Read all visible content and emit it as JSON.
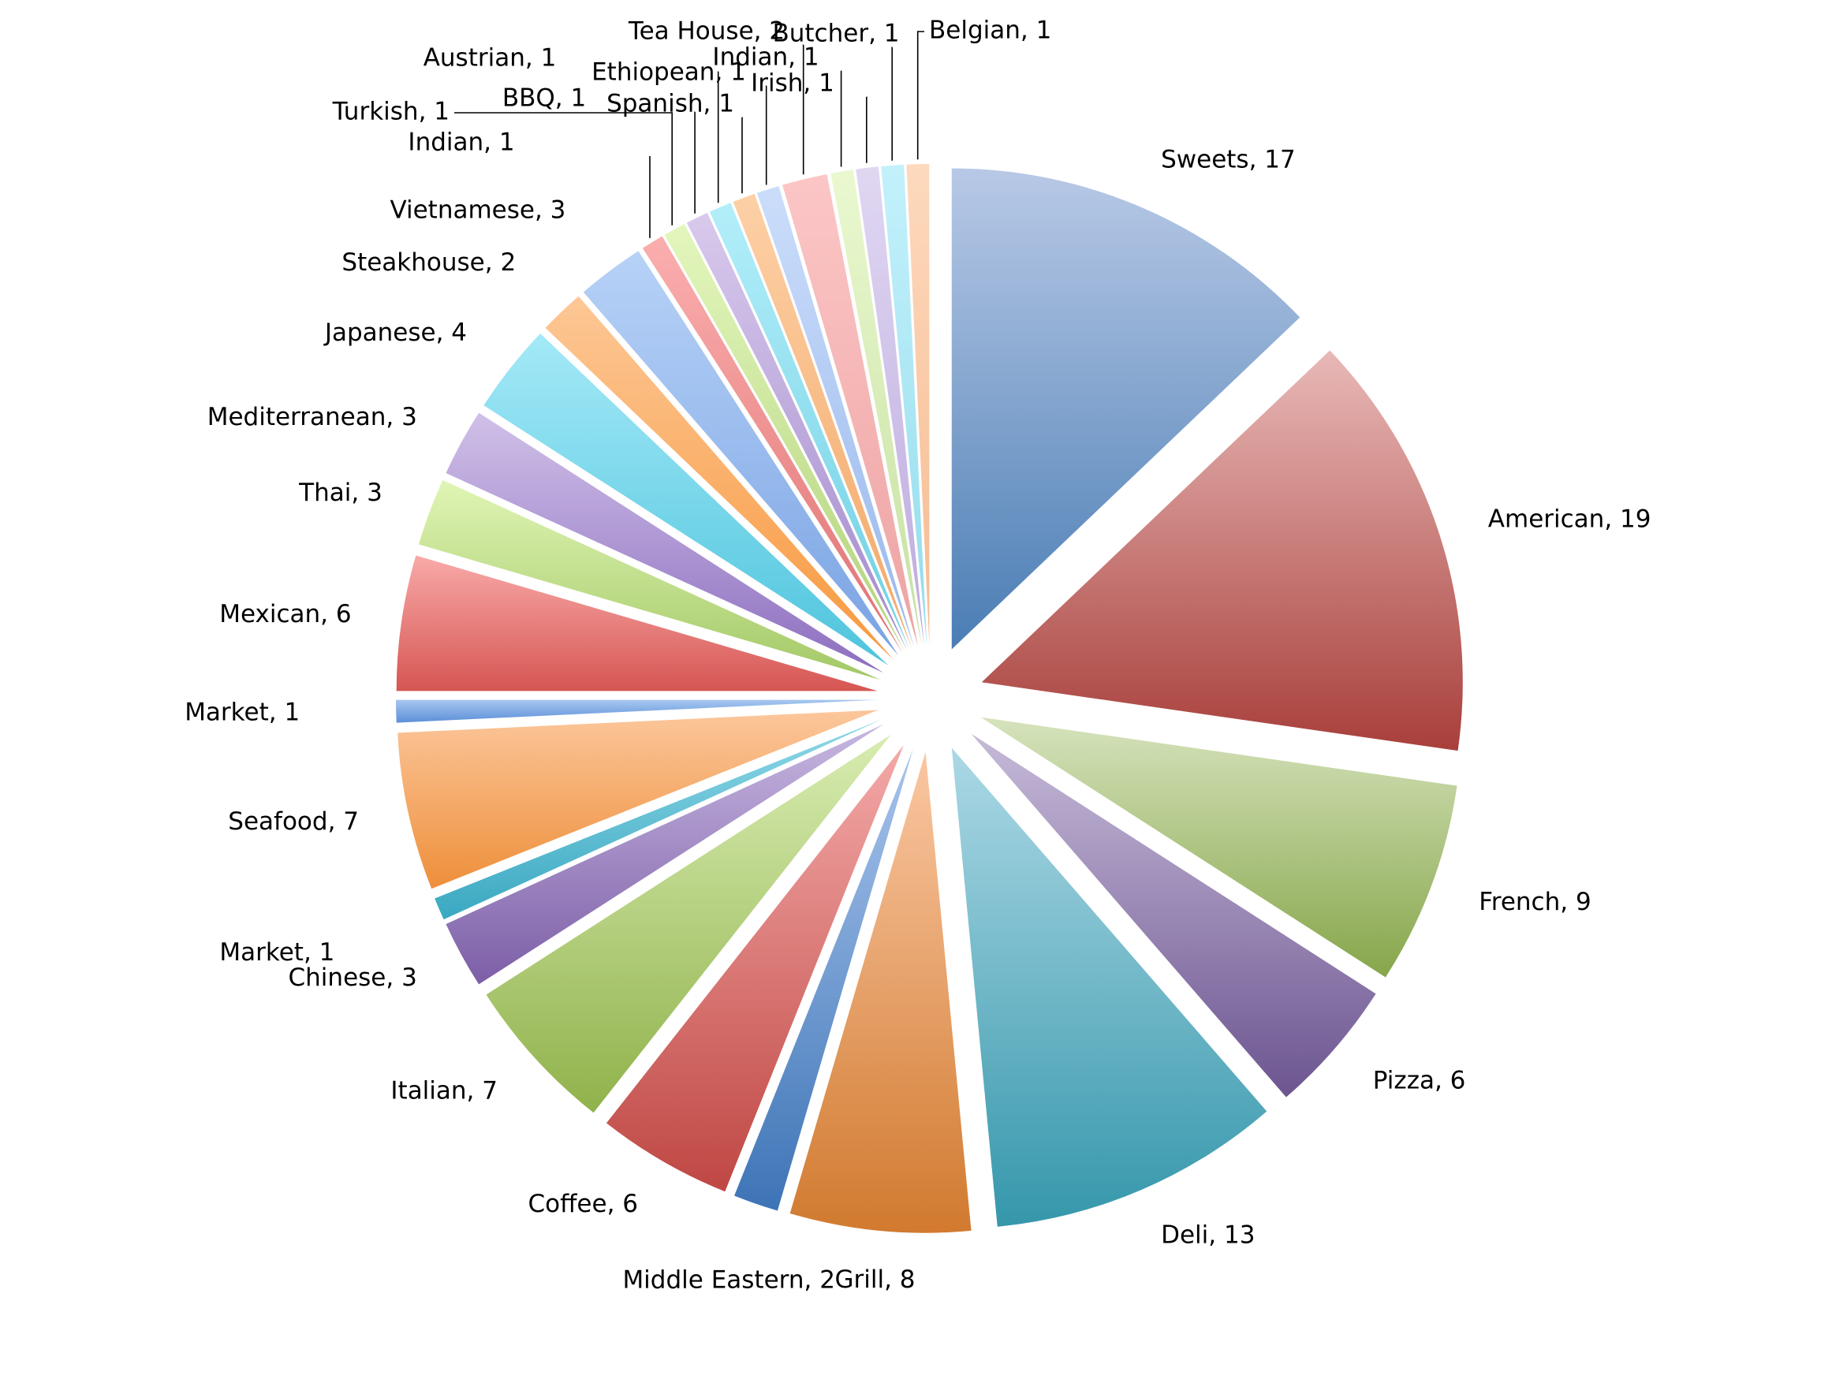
{
  "chart_data": {
    "type": "pie",
    "title": "",
    "exploded": true,
    "start": "top",
    "direction": "clockwise",
    "label_format": "{name}, {value}",
    "slices": [
      {
        "name": "Sweets",
        "value": 17,
        "color_light": "#b8c9e6",
        "color_dark": "#4a7db4"
      },
      {
        "name": "American",
        "value": 19,
        "color_light": "#e8b9b7",
        "color_dark": "#a83f3b"
      },
      {
        "name": "French",
        "value": 9,
        "color_light": "#d6e3bd",
        "color_dark": "#86a64a"
      },
      {
        "name": "Pizza",
        "value": 6,
        "color_light": "#c6bad8",
        "color_dark": "#6c5590"
      },
      {
        "name": "Deli",
        "value": 13,
        "color_light": "#acd8e5",
        "color_dark": "#3597ab"
      },
      {
        "name": "Grill",
        "value": 8,
        "color_light": "#fac7a2",
        "color_dark": "#d17a2f"
      },
      {
        "name": "Middle Eastern",
        "value": 2,
        "color_light": "#a8c4ec",
        "color_dark": "#3d74b6"
      },
      {
        "name": "Coffee",
        "value": 6,
        "color_light": "#f3a9a8",
        "color_dark": "#bf4743"
      },
      {
        "name": "Italian",
        "value": 7,
        "color_light": "#d8ecb1",
        "color_dark": "#90b24b"
      },
      {
        "name": "Chinese",
        "value": 3,
        "color_light": "#c7b7e0",
        "color_dark": "#7c5ea7"
      },
      {
        "name": "Market",
        "value": 1,
        "color_light": "#90d8e8",
        "color_dark": "#3aa8c1"
      },
      {
        "name": "Seafood",
        "value": 7,
        "color_light": "#fcc79c",
        "color_dark": "#ee8f3a"
      },
      {
        "name": "Market",
        "value": 1,
        "color_light": "#a7c7f0",
        "color_dark": "#5b8fd8"
      },
      {
        "name": "Mexican",
        "value": 6,
        "color_light": "#f8aaa9",
        "color_dark": "#d65652"
      },
      {
        "name": "Thai",
        "value": 3,
        "color_light": "#e0f5b5",
        "color_dark": "#a2c865"
      },
      {
        "name": "Mediterranean",
        "value": 3,
        "color_light": "#d0c0e8",
        "color_dark": "#8c6ebf"
      },
      {
        "name": "Japanese",
        "value": 4,
        "color_light": "#a4e9f7",
        "color_dark": "#4ec4dd"
      },
      {
        "name": "Steakhouse",
        "value": 2,
        "color_light": "#fdc795",
        "color_dark": "#f7993f"
      },
      {
        "name": "Vietnamese",
        "value": 3,
        "color_light": "#b7d2f7",
        "color_dark": "#7aa3e3"
      },
      {
        "name": "Indian",
        "value": 1,
        "color_light": "#fbaeae",
        "color_dark": "#e07373"
      },
      {
        "name": "Turkish",
        "value": 1,
        "color_light": "#e3f6bd",
        "color_dark": "#b2d37b"
      },
      {
        "name": "BBQ",
        "value": 1,
        "color_light": "#d8c9ec",
        "color_dark": "#a28bcc"
      },
      {
        "name": "Austrian",
        "value": 1,
        "color_light": "#b3eefa",
        "color_dark": "#6fcfe3"
      },
      {
        "name": "Spanish",
        "value": 1,
        "color_light": "#fdd0a6",
        "color_dark": "#f2a868"
      },
      {
        "name": "Ethiopean",
        "value": 1,
        "color_light": "#cbddfa",
        "color_dark": "#98b8ec"
      },
      {
        "name": "Tea House",
        "value": 2,
        "color_light": "#fcc6c6",
        "color_dark": "#eda3a3"
      },
      {
        "name": "Indian",
        "value": 1,
        "color_light": "#eaf8d0",
        "color_dark": "#c6e0a0"
      },
      {
        "name": "Irish",
        "value": 1,
        "color_light": "#e0d7f2",
        "color_dark": "#bcaade"
      },
      {
        "name": "Butcher",
        "value": 1,
        "color_light": "#c3f1fb",
        "color_dark": "#93dcec"
      },
      {
        "name": "Belgian",
        "value": 1,
        "color_light": "#fdd9bd",
        "color_dark": "#f6bb90"
      }
    ]
  }
}
